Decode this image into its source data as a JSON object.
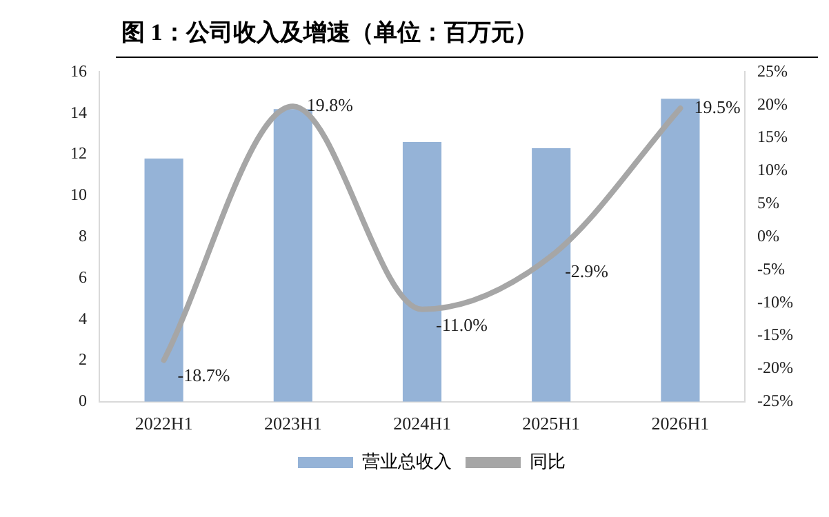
{
  "chart_data": {
    "type": "bar",
    "title": "图 1：公司收入及增速（单位：百万元）",
    "categories": [
      "2022H1",
      "2023H1",
      "2024H1",
      "2025H1",
      "2026H1"
    ],
    "series": [
      {
        "name": "营业总收入",
        "color": "#95b3d7",
        "values": [
          11.8,
          14.2,
          12.6,
          12.3,
          14.7
        ]
      },
      {
        "name": "同比",
        "type": "line",
        "axis": "y2",
        "color": "#a6a6a6",
        "values": [
          -18.7,
          19.8,
          -11.0,
          -2.9,
          19.5
        ],
        "value_labels": [
          "-18.7%",
          "19.8%",
          "-11.0%",
          "-2.9%",
          "19.5%"
        ]
      }
    ],
    "ylim": [
      0,
      16
    ],
    "yticks": [
      0,
      2,
      4,
      6,
      8,
      10,
      12,
      14,
      16
    ],
    "y2lim": [
      -25,
      25
    ],
    "y2ticks": [
      {
        "value": -25,
        "label": "-25%"
      },
      {
        "value": -20,
        "label": "-20%"
      },
      {
        "value": -15,
        "label": "-15%"
      },
      {
        "value": -10,
        "label": "-10%"
      },
      {
        "value": -5,
        "label": "-5%"
      },
      {
        "value": 0,
        "label": "0%"
      },
      {
        "value": 5,
        "label": "5%"
      },
      {
        "value": 10,
        "label": "10%"
      },
      {
        "value": 15,
        "label": "15%"
      },
      {
        "value": 20,
        "label": "20%"
      },
      {
        "value": 25,
        "label": "25%"
      }
    ],
    "grid": false,
    "legend": "bottom",
    "marker": "none"
  }
}
